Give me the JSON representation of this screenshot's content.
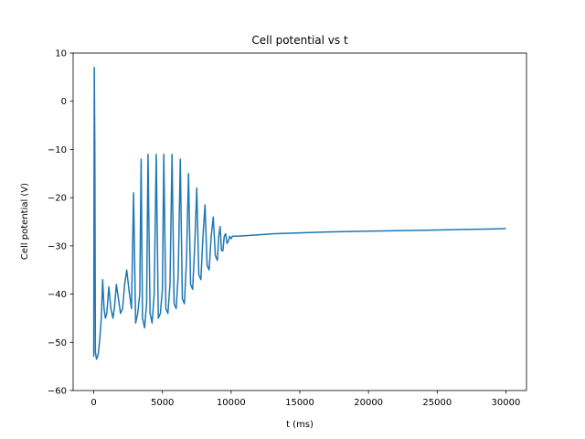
{
  "chart_data": {
    "type": "line",
    "title": "Cell potential vs t",
    "xlabel": "t (ms)",
    "ylabel": "Cell potential (V)",
    "xlim": [
      -1500,
      31500
    ],
    "ylim": [
      -60,
      10
    ],
    "xticks": [
      0,
      5000,
      10000,
      15000,
      20000,
      25000,
      30000
    ],
    "yticks": [
      -60,
      -50,
      -40,
      -30,
      -20,
      -10,
      0,
      10
    ],
    "grid": false,
    "legend": "none",
    "series": [
      {
        "color": "#1f77b4",
        "x": [
          0,
          40,
          80,
          120,
          200,
          280,
          350,
          450,
          550,
          650,
          750,
          850,
          950,
          1100,
          1250,
          1400,
          1500,
          1650,
          1800,
          1950,
          2100,
          2250,
          2400,
          2600,
          2750,
          2900,
          3050,
          3200,
          3350,
          3450,
          3550,
          3700,
          3850,
          3950,
          4100,
          4250,
          4400,
          4550,
          4700,
          4850,
          5000,
          5100,
          5250,
          5400,
          5550,
          5700,
          5850,
          6000,
          6150,
          6300,
          6450,
          6600,
          6750,
          6900,
          7050,
          7200,
          7350,
          7500,
          7650,
          7800,
          7950,
          8100,
          8250,
          8400,
          8550,
          8700,
          8850,
          9000,
          9100,
          9200,
          9300,
          9400,
          9500,
          9600,
          9700,
          9800,
          9900,
          10000,
          10100,
          10200,
          10300,
          10500,
          11000,
          12000,
          13000,
          14000,
          15000,
          17000,
          19000,
          21000,
          23000,
          25000,
          27000,
          29000,
          30000
        ],
        "values": [
          -53,
          7,
          -10,
          -52,
          -53.5,
          -53,
          -52,
          -49,
          -45,
          -37,
          -43,
          -45,
          -44,
          -38.5,
          -43,
          -45,
          -43,
          -38,
          -41,
          -44,
          -43,
          -38,
          -35,
          -40,
          -43,
          -19,
          -46,
          -44,
          -40,
          -12,
          -45,
          -47,
          -42,
          -11,
          -44,
          -46,
          -40,
          -11,
          -45,
          -44,
          -39,
          -11,
          -43,
          -44,
          -38,
          -11,
          -42,
          -43,
          -36,
          -12,
          -41,
          -42,
          -33,
          -15,
          -38,
          -39,
          -30,
          -18,
          -36,
          -37,
          -28,
          -21.5,
          -34,
          -35,
          -28,
          -24,
          -32,
          -33,
          -28,
          -26,
          -31,
          -31,
          -28,
          -27.5,
          -29.5,
          -29,
          -28,
          -28.5,
          -28,
          -28,
          -28,
          -28,
          -27.9,
          -27.7,
          -27.5,
          -27.4,
          -27.3,
          -27.1,
          -27,
          -26.9,
          -26.8,
          -26.7,
          -26.6,
          -26.5,
          -26.4
        ]
      }
    ]
  }
}
